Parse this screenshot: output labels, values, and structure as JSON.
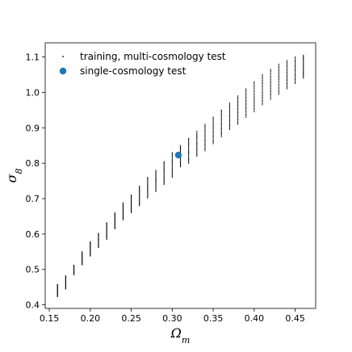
{
  "chart_data": {
    "type": "scatter",
    "title": "",
    "xlabel": "Ω_m",
    "ylabel": "σ_8",
    "xlim": [
      0.145,
      0.475
    ],
    "ylim": [
      0.39,
      1.14
    ],
    "grid": false,
    "legend_placement": "top-left",
    "x_ticks": [
      0.15,
      0.2,
      0.25,
      0.3,
      0.35,
      0.4,
      0.45
    ],
    "x_tick_labels": [
      "0.15",
      "0.20",
      "0.25",
      "0.30",
      "0.35",
      "0.40",
      "0.45"
    ],
    "y_ticks": [
      0.4,
      0.5,
      0.6,
      0.7,
      0.8,
      0.9,
      1.0,
      1.1
    ],
    "y_tick_labels": [
      "0.4",
      "0.5",
      "0.6",
      "0.7",
      "0.8",
      "0.9",
      "1.0",
      "1.1"
    ],
    "series": [
      {
        "name": "training, multi-cosmology test",
        "color": "#000000",
        "marker": "small-dot",
        "columns": [
          {
            "x": 0.16,
            "y_range": [
              0.423,
              0.458
            ]
          },
          {
            "x": 0.17,
            "y_range": [
              0.445,
              0.482
            ]
          },
          {
            "x": 0.18,
            "y_range": [
              0.485,
              0.512
            ]
          },
          {
            "x": 0.19,
            "y_range": [
              0.513,
              0.55
            ]
          },
          {
            "x": 0.2,
            "y_range": [
              0.538,
              0.578
            ]
          },
          {
            "x": 0.21,
            "y_range": [
              0.562,
              0.602
            ]
          },
          {
            "x": 0.22,
            "y_range": [
              0.585,
              0.632
            ]
          },
          {
            "x": 0.23,
            "y_range": [
              0.615,
              0.66
            ]
          },
          {
            "x": 0.24,
            "y_range": [
              0.64,
              0.688
            ]
          },
          {
            "x": 0.25,
            "y_range": [
              0.66,
              0.71
            ]
          },
          {
            "x": 0.26,
            "y_range": [
              0.68,
              0.735
            ]
          },
          {
            "x": 0.27,
            "y_range": [
              0.702,
              0.76
            ]
          },
          {
            "x": 0.28,
            "y_range": [
              0.72,
              0.78
            ]
          },
          {
            "x": 0.29,
            "y_range": [
              0.74,
              0.805
            ]
          },
          {
            "x": 0.3,
            "y_range": [
              0.76,
              0.83
            ]
          },
          {
            "x": 0.31,
            "y_range": [
              0.79,
              0.85
            ]
          },
          {
            "x": 0.32,
            "y_range": [
              0.8,
              0.87
            ]
          },
          {
            "x": 0.33,
            "y_range": [
              0.82,
              0.89
            ]
          },
          {
            "x": 0.34,
            "y_range": [
              0.835,
              0.91
            ]
          },
          {
            "x": 0.35,
            "y_range": [
              0.855,
              0.93
            ]
          },
          {
            "x": 0.36,
            "y_range": [
              0.875,
              0.95
            ]
          },
          {
            "x": 0.37,
            "y_range": [
              0.895,
              0.97
            ]
          },
          {
            "x": 0.38,
            "y_range": [
              0.91,
              0.99
            ]
          },
          {
            "x": 0.39,
            "y_range": [
              0.93,
              1.01
            ]
          },
          {
            "x": 0.4,
            "y_range": [
              0.945,
              1.03
            ]
          },
          {
            "x": 0.41,
            "y_range": [
              0.965,
              1.05
            ]
          },
          {
            "x": 0.42,
            "y_range": [
              0.98,
              1.065
            ]
          },
          {
            "x": 0.43,
            "y_range": [
              0.995,
              1.08
            ]
          },
          {
            "x": 0.44,
            "y_range": [
              1.01,
              1.09
            ]
          },
          {
            "x": 0.45,
            "y_range": [
              1.025,
              1.1
            ]
          },
          {
            "x": 0.46,
            "y_range": [
              1.04,
              1.105
            ]
          }
        ]
      },
      {
        "name": "single-cosmology test",
        "color": "#1f77b4",
        "marker": "circle",
        "points": [
          {
            "x": 0.3075,
            "y": 0.823
          }
        ]
      }
    ]
  }
}
